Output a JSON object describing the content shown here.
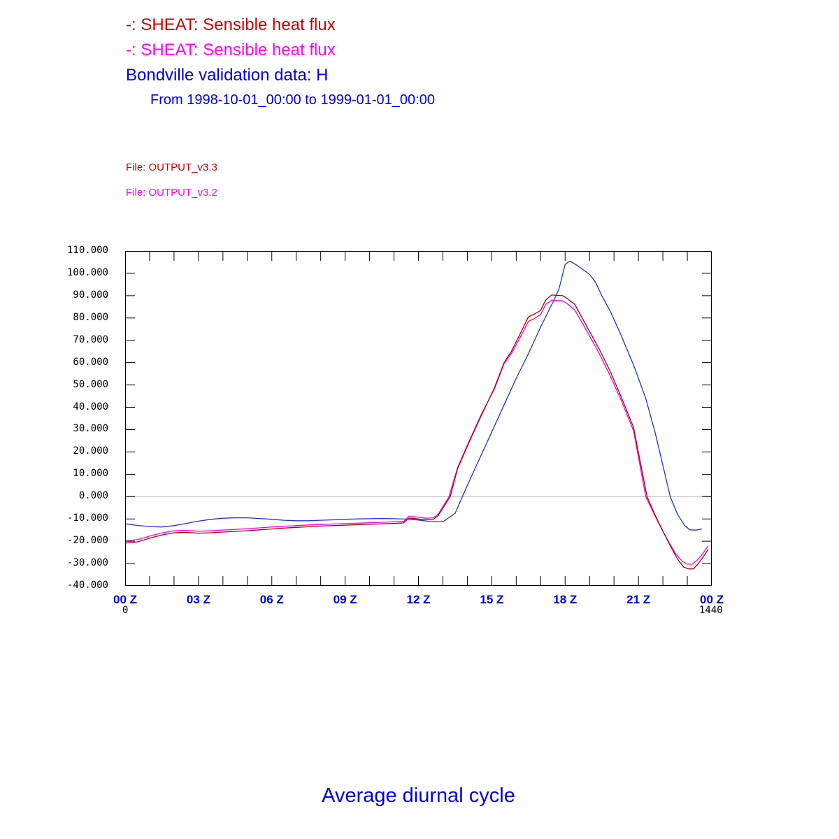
{
  "colors": {
    "red_text": "#cc0000",
    "magenta_text": "#ff00ff",
    "blue_text": "#0000dd",
    "red_line": "#aa0000",
    "magenta_line": "#ee00ee",
    "blue_line": "#2233cc",
    "zero_line": "#b8b8b8",
    "axis": "#000000"
  },
  "header": {
    "line1": "-: SHEAT: Sensible heat flux",
    "line2": "-: SHEAT: Sensible heat flux",
    "line3": "Bondville validation data: H",
    "line4": "From 1998-10-01_00:00 to 1999-01-01_00:00"
  },
  "files": {
    "file1": "File: OUTPUT_v3.3",
    "file2": "File: OUTPUT_v3.2"
  },
  "footer": {
    "title": "Average diurnal cycle"
  },
  "chart_data": {
    "type": "line",
    "title": "Average diurnal cycle",
    "xlabel": "",
    "ylabel": "",
    "x_range_hours": [
      0,
      24
    ],
    "x_axis_minutes_annotation": {
      "start": "0",
      "end": "1440"
    },
    "ylim": [
      -40,
      110
    ],
    "grid": "zero-line-only",
    "x_ticks_every_hours": 1,
    "y_ticks": [
      {
        "value": 110,
        "label": "110.000"
      },
      {
        "value": 100,
        "label": "100.000"
      },
      {
        "value": 90,
        "label": "90.000"
      },
      {
        "value": 80,
        "label": "80.000"
      },
      {
        "value": 70,
        "label": "70.000"
      },
      {
        "value": 60,
        "label": "60.000"
      },
      {
        "value": 50,
        "label": "50.000"
      },
      {
        "value": 40,
        "label": "40.000"
      },
      {
        "value": 30,
        "label": "30.000"
      },
      {
        "value": 20,
        "label": "20.000"
      },
      {
        "value": 10,
        "label": "10.000"
      },
      {
        "value": 0,
        "label": "0.000"
      },
      {
        "value": -10,
        "label": "-10.000"
      },
      {
        "value": -20,
        "label": "-20.000"
      },
      {
        "value": -30,
        "label": "-30.000"
      },
      {
        "value": -40,
        "label": "-40.000"
      }
    ],
    "x_ticks": [
      {
        "hour": 0,
        "label": "00 Z"
      },
      {
        "hour": 3,
        "label": "03 Z"
      },
      {
        "hour": 6,
        "label": "06 Z"
      },
      {
        "hour": 9,
        "label": "09 Z"
      },
      {
        "hour": 12,
        "label": "12 Z"
      },
      {
        "hour": 15,
        "label": "15 Z"
      },
      {
        "hour": 18,
        "label": "18 Z"
      },
      {
        "hour": 21,
        "label": "21 Z"
      },
      {
        "hour": 24,
        "label": "00 Z"
      }
    ],
    "series": [
      {
        "name": "Bondville validation data: H",
        "color_key": "blue_line",
        "points": [
          [
            0,
            -12.2
          ],
          [
            0.5,
            -12.9
          ],
          [
            1,
            -13.4
          ],
          [
            1.5,
            -13.6
          ],
          [
            2,
            -13.0
          ],
          [
            2.5,
            -12.0
          ],
          [
            3,
            -11.0
          ],
          [
            3.5,
            -10.2
          ],
          [
            4,
            -9.7
          ],
          [
            4.5,
            -9.5
          ],
          [
            5,
            -9.5
          ],
          [
            5.5,
            -9.8
          ],
          [
            6,
            -10.2
          ],
          [
            6.5,
            -10.6
          ],
          [
            7,
            -10.8
          ],
          [
            7.5,
            -10.8
          ],
          [
            8,
            -10.6
          ],
          [
            8.5,
            -10.4
          ],
          [
            9,
            -10.2
          ],
          [
            9.5,
            -10.0
          ],
          [
            10,
            -9.9
          ],
          [
            10.5,
            -9.8
          ],
          [
            11,
            -9.9
          ],
          [
            11.5,
            -10.1
          ],
          [
            12,
            -10.5
          ],
          [
            12.5,
            -11.2
          ],
          [
            13,
            -11.3
          ],
          [
            13.5,
            -7.5
          ],
          [
            14,
            5
          ],
          [
            14.5,
            17
          ],
          [
            15,
            29
          ],
          [
            15.5,
            41
          ],
          [
            16,
            53
          ],
          [
            16.5,
            64
          ],
          [
            17,
            76
          ],
          [
            17.5,
            87
          ],
          [
            17.75,
            93
          ],
          [
            18,
            104
          ],
          [
            18.2,
            105.5
          ],
          [
            18.5,
            103.5
          ],
          [
            18.75,
            101.5
          ],
          [
            19,
            99.5
          ],
          [
            19.25,
            96
          ],
          [
            19.5,
            90
          ],
          [
            19.85,
            83
          ],
          [
            20.3,
            72
          ],
          [
            20.8,
            59
          ],
          [
            21.3,
            44
          ],
          [
            21.7,
            28
          ],
          [
            22,
            14
          ],
          [
            22.3,
            0
          ],
          [
            22.6,
            -8
          ],
          [
            22.9,
            -13
          ],
          [
            23.1,
            -14.9
          ],
          [
            23.35,
            -15.0
          ],
          [
            23.6,
            -14.5
          ]
        ]
      },
      {
        "name": "SHEAT: Sensible heat flux (v3.2)",
        "color_key": "magenta_line",
        "points": [
          [
            0,
            -19.9
          ],
          [
            0.5,
            -19.3
          ],
          [
            1,
            -17.7
          ],
          [
            1.5,
            -16.3
          ],
          [
            2,
            -15.3
          ],
          [
            2.5,
            -15.1
          ],
          [
            3,
            -15.5
          ],
          [
            3.5,
            -15.3
          ],
          [
            4,
            -15.0
          ],
          [
            4.5,
            -14.7
          ],
          [
            5,
            -14.4
          ],
          [
            5.5,
            -14.0
          ],
          [
            6,
            -13.6
          ],
          [
            6.5,
            -13.3
          ],
          [
            7,
            -13.0
          ],
          [
            7.5,
            -12.7
          ],
          [
            8,
            -12.5
          ],
          [
            8.5,
            -12.3
          ],
          [
            9,
            -12.1
          ],
          [
            9.5,
            -11.9
          ],
          [
            10,
            -11.7
          ],
          [
            10.5,
            -11.5
          ],
          [
            11,
            -11.3
          ],
          [
            11.4,
            -11.1
          ],
          [
            11.6,
            -8.8
          ],
          [
            12,
            -9.2
          ],
          [
            12.3,
            -9.7
          ],
          [
            12.6,
            -9.5
          ],
          [
            12.8,
            -8.0
          ],
          [
            13.25,
            0
          ],
          [
            13.6,
            13
          ],
          [
            14.1,
            25.5
          ],
          [
            14.6,
            37.5
          ],
          [
            15.1,
            48
          ],
          [
            15.5,
            59.5
          ],
          [
            15.8,
            64
          ],
          [
            16.1,
            70
          ],
          [
            16.5,
            78.5
          ],
          [
            16.7,
            79.5
          ],
          [
            17,
            81.5
          ],
          [
            17.2,
            86
          ],
          [
            17.45,
            88
          ],
          [
            17.9,
            87.7
          ],
          [
            18.1,
            86.3
          ],
          [
            18.4,
            83.5
          ],
          [
            18.9,
            74
          ],
          [
            19.4,
            64
          ],
          [
            19.85,
            54
          ],
          [
            20.3,
            43
          ],
          [
            20.8,
            29.5
          ],
          [
            21.3,
            0
          ],
          [
            21.65,
            -8
          ],
          [
            21.95,
            -14.5
          ],
          [
            22.25,
            -20.5
          ],
          [
            22.55,
            -26
          ],
          [
            22.8,
            -29
          ],
          [
            23,
            -30.3
          ],
          [
            23.2,
            -30.3
          ],
          [
            23.45,
            -28
          ],
          [
            23.65,
            -25.3
          ],
          [
            23.85,
            -22
          ]
        ]
      },
      {
        "name": "SHEAT: Sensible heat flux (v3.3)",
        "color_key": "red_line",
        "points": [
          [
            0,
            -20.8
          ],
          [
            0.5,
            -20.3
          ],
          [
            1,
            -18.6
          ],
          [
            1.5,
            -17.2
          ],
          [
            2,
            -16.2
          ],
          [
            2.5,
            -16.0
          ],
          [
            3,
            -16.4
          ],
          [
            3.5,
            -16.2
          ],
          [
            4,
            -15.9
          ],
          [
            4.5,
            -15.6
          ],
          [
            5,
            -15.3
          ],
          [
            5.5,
            -14.9
          ],
          [
            6,
            -14.5
          ],
          [
            6.5,
            -14.1
          ],
          [
            7,
            -13.8
          ],
          [
            7.5,
            -13.5
          ],
          [
            8,
            -13.2
          ],
          [
            8.5,
            -13.0
          ],
          [
            9,
            -12.8
          ],
          [
            9.5,
            -12.6
          ],
          [
            10,
            -12.4
          ],
          [
            10.5,
            -12.2
          ],
          [
            11,
            -12.0
          ],
          [
            11.4,
            -11.8
          ],
          [
            11.6,
            -9.7
          ],
          [
            12,
            -10.0
          ],
          [
            12.3,
            -10.4
          ],
          [
            12.6,
            -10.2
          ],
          [
            12.8,
            -8.6
          ],
          [
            13.3,
            0
          ],
          [
            13.6,
            12.5
          ],
          [
            14.1,
            25
          ],
          [
            14.6,
            37
          ],
          [
            15.1,
            48.5
          ],
          [
            15.5,
            60
          ],
          [
            15.8,
            65
          ],
          [
            16.1,
            71.5
          ],
          [
            16.5,
            80.5
          ],
          [
            16.7,
            81.5
          ],
          [
            17,
            83.4
          ],
          [
            17.2,
            88
          ],
          [
            17.45,
            90.3
          ],
          [
            17.9,
            90.0
          ],
          [
            18.1,
            88.6
          ],
          [
            18.4,
            86
          ],
          [
            18.9,
            76
          ],
          [
            19.4,
            66
          ],
          [
            19.85,
            56
          ],
          [
            20.3,
            44.5
          ],
          [
            20.8,
            31
          ],
          [
            21.35,
            0
          ],
          [
            21.7,
            -8.7
          ],
          [
            22,
            -15.5
          ],
          [
            22.3,
            -22
          ],
          [
            22.6,
            -28
          ],
          [
            22.85,
            -31.5
          ],
          [
            23.05,
            -32.4
          ],
          [
            23.25,
            -32.4
          ],
          [
            23.45,
            -30
          ],
          [
            23.65,
            -27
          ],
          [
            23.85,
            -23.7
          ]
        ]
      }
    ]
  }
}
